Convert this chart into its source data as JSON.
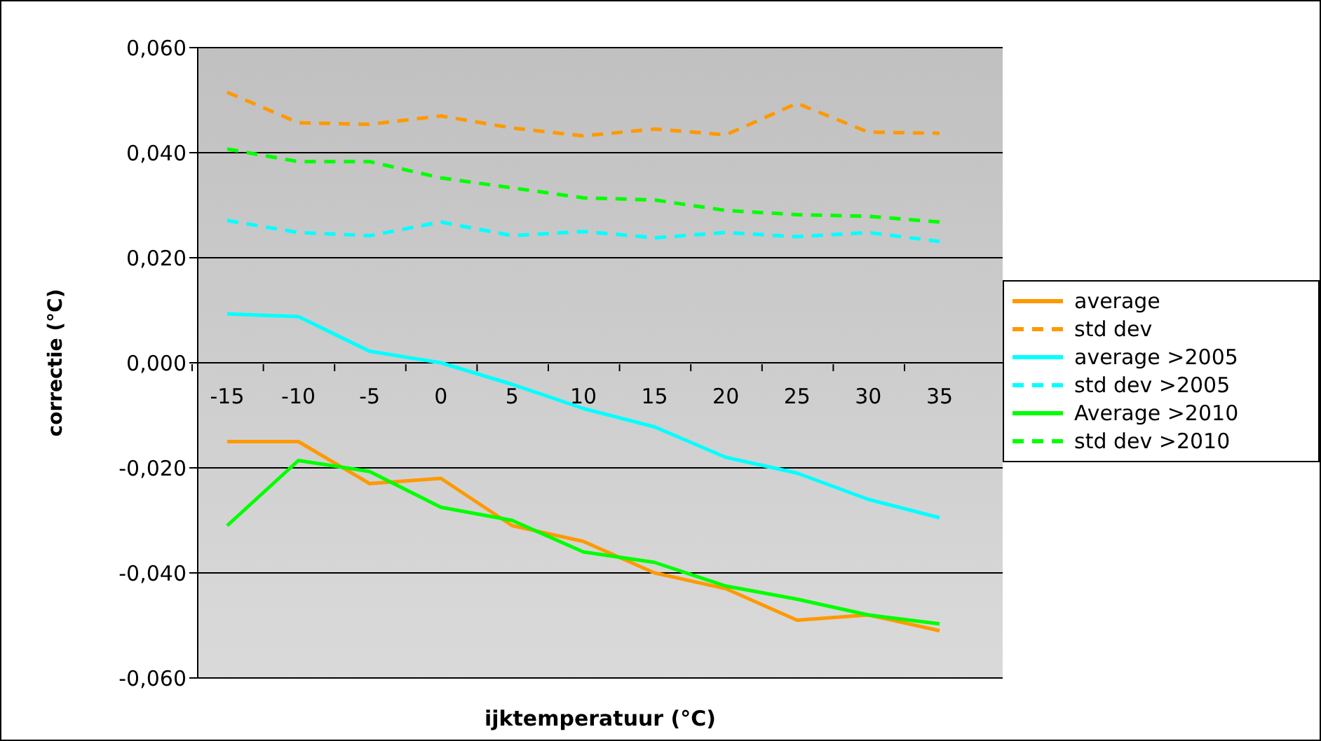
{
  "chart_data": {
    "type": "line",
    "xlabel": "ijktemperatuur (°C)",
    "ylabel": "correctie (°C)",
    "categories": [
      "-15",
      "-10",
      "-5",
      "0",
      "5",
      "10",
      "15",
      "20",
      "25",
      "30",
      "35"
    ],
    "series": [
      {
        "name": "average",
        "color": "#ff9900",
        "line_style": "solid",
        "values": [
          -0.015,
          -0.015,
          -0.023,
          -0.022,
          -0.031,
          -0.034,
          -0.04,
          -0.043,
          -0.049,
          -0.048,
          -0.051
        ]
      },
      {
        "name": "std dev",
        "color": "#ff9900",
        "line_style": "dashed",
        "values": [
          0.0515,
          0.0457,
          0.0454,
          0.047,
          0.0447,
          0.0432,
          0.0445,
          0.0434,
          0.0494,
          0.0439,
          0.0437
        ]
      },
      {
        "name": "average >2005",
        "color": "#00ffff",
        "line_style": "solid",
        "values": [
          0.0093,
          0.0088,
          0.0022,
          0.0,
          -0.0041,
          -0.0087,
          -0.0122,
          -0.018,
          -0.021,
          -0.026,
          -0.0295
        ]
      },
      {
        "name": "std dev >2005",
        "color": "#00ffff",
        "line_style": "dashed",
        "values": [
          0.0271,
          0.0248,
          0.0242,
          0.0268,
          0.0242,
          0.025,
          0.0238,
          0.0248,
          0.024,
          0.0248,
          0.0231
        ]
      },
      {
        "name": "Average >2010",
        "color": "#00ff00",
        "line_style": "solid",
        "values": [
          -0.031,
          -0.0186,
          -0.0207,
          -0.0275,
          -0.03,
          -0.036,
          -0.038,
          -0.0425,
          -0.045,
          -0.048,
          -0.0497
        ]
      },
      {
        "name": "std dev >2010",
        "color": "#00ff00",
        "line_style": "dashed",
        "values": [
          0.0407,
          0.0383,
          0.0383,
          0.0352,
          0.0333,
          0.0314,
          0.031,
          0.029,
          0.0282,
          0.0279,
          0.0268
        ]
      }
    ],
    "ylim": [
      -0.06,
      0.06
    ],
    "yticks": [
      {
        "value": -0.06,
        "label": "-0,060"
      },
      {
        "value": -0.04,
        "label": "-0,040"
      },
      {
        "value": -0.02,
        "label": "-0,020"
      },
      {
        "value": 0,
        "label": "0,000"
      },
      {
        "value": 0.02,
        "label": "0,020"
      },
      {
        "value": 0.04,
        "label": "0,040"
      },
      {
        "value": 0.06,
        "label": "0,060"
      }
    ],
    "grid": "y",
    "legend": "right",
    "marker": "none"
  }
}
